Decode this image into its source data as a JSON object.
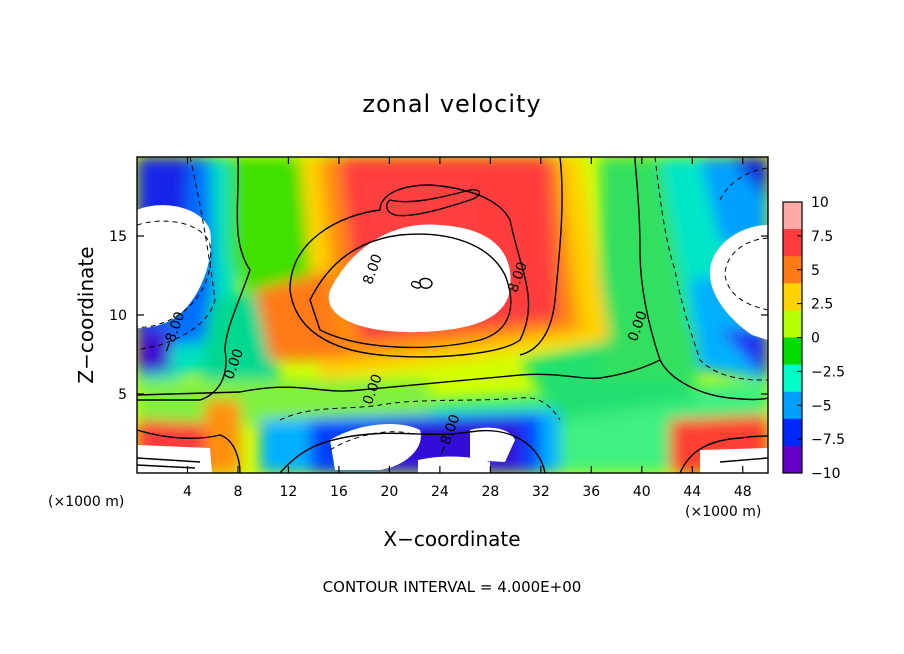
{
  "chart_data": {
    "type": "heatmap",
    "title": "zonal velocity",
    "xlabel": "X−coordinate",
    "ylabel": "Z−coordinate",
    "x_unit_left": "(×1000 m)",
    "x_unit_right": "(×1000 m)",
    "footer": "CONTOUR INTERVAL = 4.000E+00",
    "xlim": [
      0,
      50
    ],
    "ylim": [
      0,
      20
    ],
    "x_ticks": [
      "4",
      "8",
      "12",
      "16",
      "20",
      "24",
      "28",
      "32",
      "36",
      "40",
      "44",
      "48"
    ],
    "y_ticks": [
      "5",
      "10",
      "15"
    ],
    "colorbar": {
      "range": [
        -10,
        10
      ],
      "ticks": [
        "10",
        "7.5",
        "5",
        "2.5",
        "0",
        "−2.5",
        "−5",
        "−7.5",
        "−10"
      ],
      "colors_high_to_low": [
        "#ffa8a8",
        "#ff3c3c",
        "#ff7a14",
        "#ffd200",
        "#b4ff00",
        "#00dc00",
        "#00ffc8",
        "#00a0ff",
        "#0028ff",
        "#6400c8"
      ]
    },
    "contour_interval": 4,
    "contour_labels": [
      {
        "text": "8.00",
        "x": 19,
        "z": 12.8
      },
      {
        "text": "8.00",
        "x": 30.5,
        "z": 12.3
      },
      {
        "text": "0.00",
        "x": 40,
        "z": 9.2
      },
      {
        "text": "0.00",
        "x": 8,
        "z": 6.8
      },
      {
        "text": "0.00",
        "x": 19,
        "z": 5.2
      },
      {
        "text": "−8.00",
        "x": 3.2,
        "z": 8.8
      },
      {
        "text": "−8.00",
        "x": 25,
        "z": 2.3
      },
      {
        "text": "0",
        "x": 22.5,
        "z": 11.8
      }
    ],
    "grid": false
  }
}
